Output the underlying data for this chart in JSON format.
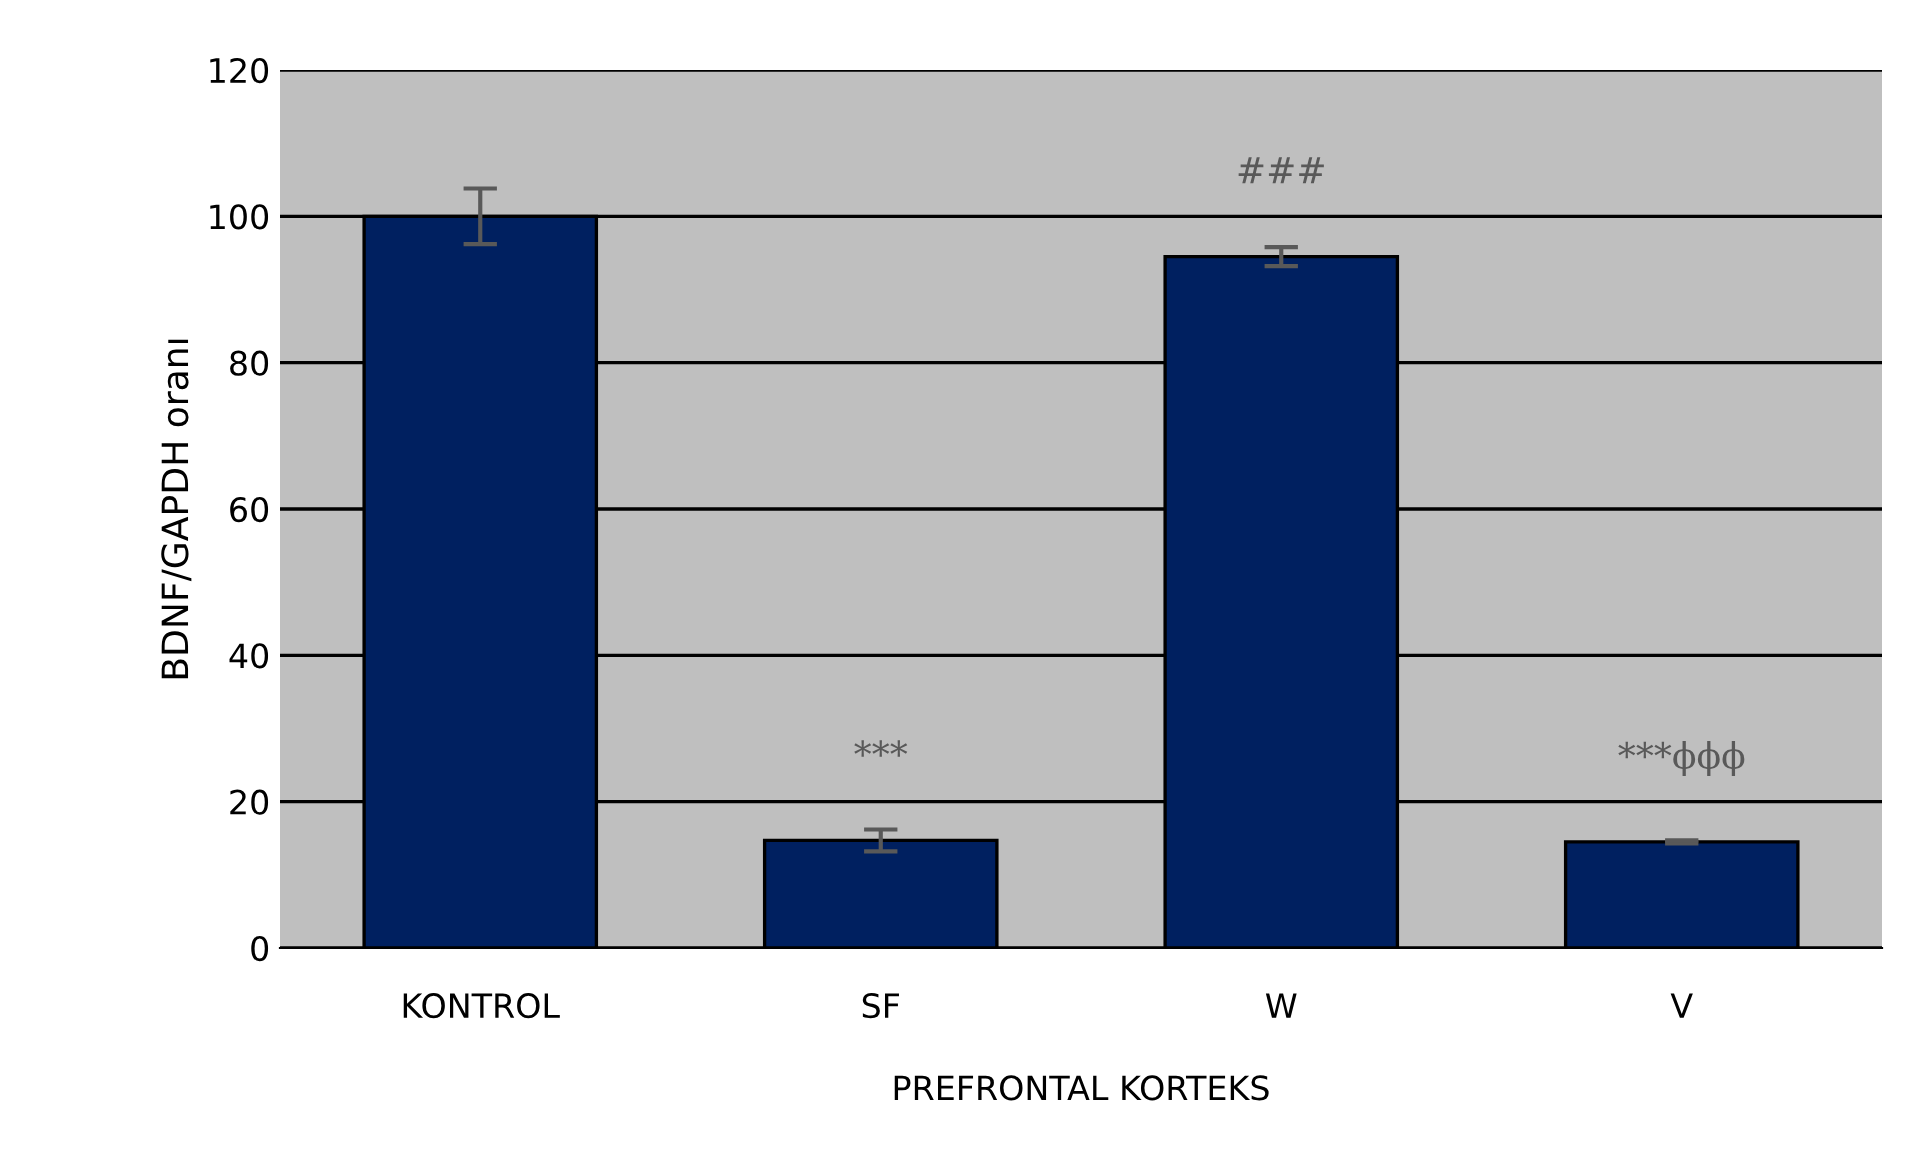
{
  "chart_data": {
    "type": "bar",
    "xlabel": "PREFRONTAL KORTEKS",
    "ylabel": "BDNF/GAPDH oranı",
    "categories": [
      "KONTROL",
      "SF",
      "W",
      "V"
    ],
    "values": [
      100,
      14.7,
      94.5,
      14.5
    ],
    "errors": [
      3.8,
      1.5,
      1.3,
      0.2
    ],
    "color": "#002060",
    "ylim": [
      0,
      120
    ],
    "yticks": [
      0,
      20,
      40,
      60,
      80,
      100,
      120
    ],
    "grid": "y",
    "annotations": [
      {
        "text": "***",
        "x": "SF",
        "y": 14.7
      },
      {
        "text": "###",
        "x": "W",
        "y": 94.5
      },
      {
        "text": "***ϕϕϕ",
        "x": "V",
        "y": 14.5
      }
    ]
  }
}
